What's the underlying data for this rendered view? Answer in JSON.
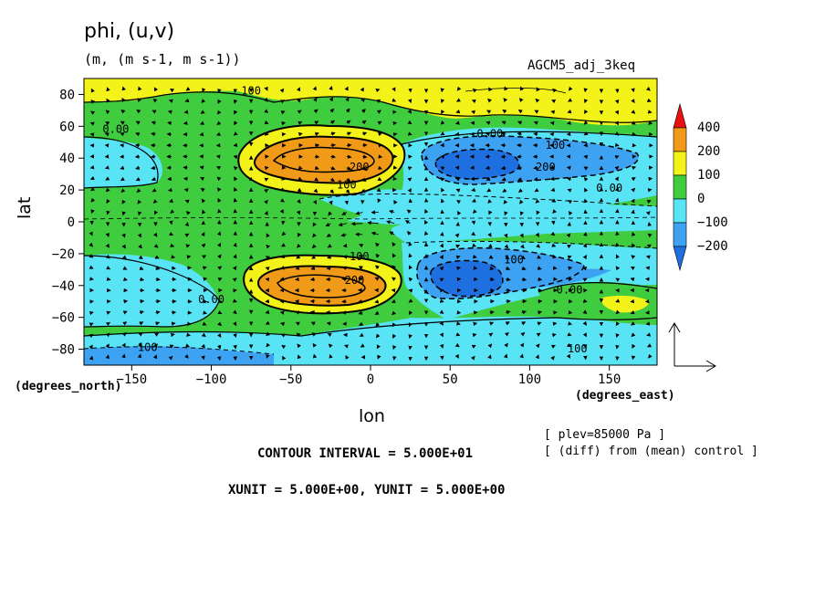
{
  "labels": {
    "title": "phi, (u,v)",
    "units": "(m, (m s-1, m s-1))",
    "run": "AGCM5_adj_3keq",
    "x_units": "(degrees_east)",
    "y_units": "(degrees_north)",
    "plev": "[ plev=85000 Pa ]",
    "diff": "[ (diff) from (mean) control ]",
    "contour_interval": "CONTOUR INTERVAL = 5.000E+01",
    "vector_units": "XUNIT = 5.000E+00, YUNIT = 5.000E+00"
  },
  "chart_data": {
    "type": "heatmap",
    "title": "phi, (u,v)",
    "subtitle": "(m, (m s-1, m s-1))",
    "xlabel": "lon",
    "ylabel": "lat",
    "xlim": [
      -180,
      180
    ],
    "ylim": [
      -90,
      90
    ],
    "x_ticks": [
      -150,
      -100,
      -50,
      0,
      50,
      100,
      150
    ],
    "y_ticks": [
      -80,
      -60,
      -40,
      -20,
      0,
      20,
      40,
      60,
      80
    ],
    "colorbar": {
      "levels": [
        -200,
        -100,
        0,
        100,
        200,
        400
      ],
      "labels": [
        "400",
        "200",
        "100",
        "0",
        "−100",
        "−200"
      ],
      "colors": {
        "lt_m200": "#1e6fe0",
        "m200_m100": "#3da2f2",
        "m100_0": "#59e4f6",
        "0_100": "#3fcc3f",
        "100_200": "#f3f31a",
        "200_400": "#f19a17",
        "gt_400": "#e81010"
      }
    },
    "contour_labels": [
      {
        "text": "100",
        "lon": -75,
        "lat": 80
      },
      {
        "text": "0.00",
        "lon": -160,
        "lat": 56
      },
      {
        "text": "100",
        "lon": -15,
        "lat": 21
      },
      {
        "text": "200",
        "lon": -7,
        "lat": 32
      },
      {
        "text": "0.00",
        "lon": 75,
        "lat": 53
      },
      {
        "text": "100",
        "lon": 116,
        "lat": 46
      },
      {
        "text": "200",
        "lon": 110,
        "lat": 32
      },
      {
        "text": "0.00",
        "lon": 150,
        "lat": 19
      },
      {
        "text": "100",
        "lon": -7,
        "lat": -24
      },
      {
        "text": "200",
        "lon": -10,
        "lat": -39
      },
      {
        "text": "100",
        "lon": 90,
        "lat": -26
      },
      {
        "text": "0.00",
        "lon": -100,
        "lat": -51
      },
      {
        "text": "0.00",
        "lon": 125,
        "lat": -45
      },
      {
        "text": "100",
        "lon": -140,
        "lat": -81
      },
      {
        "text": "100",
        "lon": 130,
        "lat": -82
      }
    ],
    "features": [
      {
        "sign": "positive",
        "band": "200_400",
        "lon": -35,
        "lat": 38
      },
      {
        "sign": "positive",
        "band": "200_400",
        "lon": -35,
        "lat": -38
      },
      {
        "sign": "negative",
        "band": "lt_m200",
        "lon": 65,
        "lat": 35
      },
      {
        "sign": "negative",
        "band": "lt_m200",
        "lon": 55,
        "lat": -36
      },
      {
        "sign": "positive",
        "band": "100_200",
        "lon": 0,
        "lat": 85
      },
      {
        "sign": "positive",
        "band": "100_200",
        "lon": 165,
        "lat": -52
      },
      {
        "sign": "negative",
        "band": "m200_m100",
        "lon": -100,
        "lat": -85
      }
    ],
    "vector_reference": {
      "xunit": 5.0,
      "yunit": 5.0
    },
    "plev_Pa": 85000
  }
}
